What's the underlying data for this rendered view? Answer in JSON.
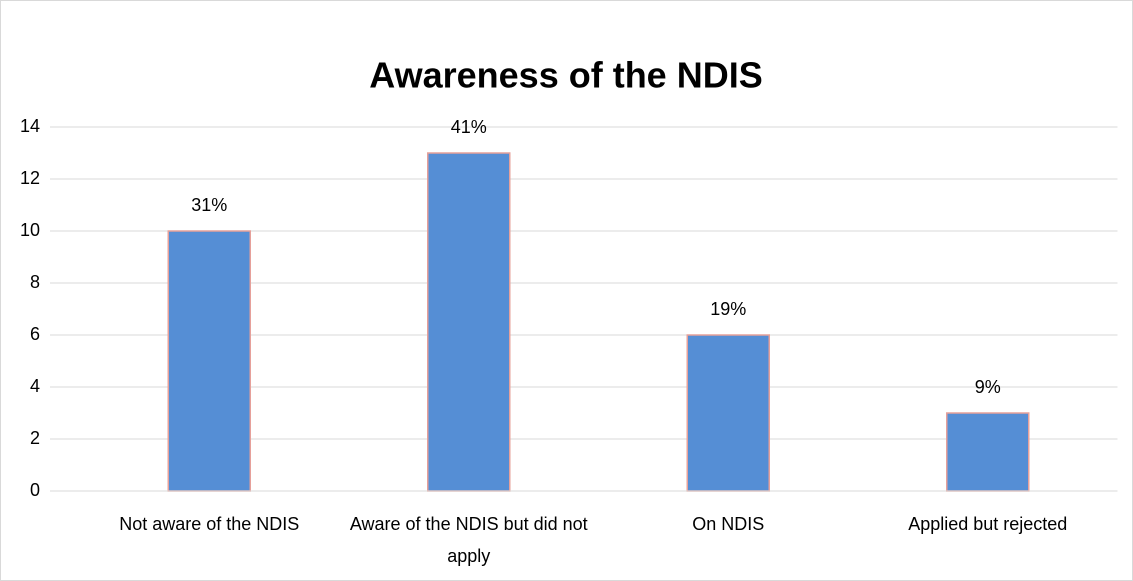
{
  "chart_data": {
    "type": "bar",
    "title": "Awareness of the NDIS",
    "categories": [
      "Not aware of the NDIS",
      "Aware of the NDIS but did not apply",
      "On NDIS",
      "Applied but rejected"
    ],
    "values": [
      10,
      13,
      6,
      3
    ],
    "annotations": [
      "31%",
      "41%",
      "19%",
      "9%"
    ],
    "color": "#558ed5",
    "ylim": [
      0,
      14
    ],
    "yticks": [
      0,
      2,
      4,
      6,
      8,
      10,
      12,
      14
    ],
    "grid": true
  }
}
